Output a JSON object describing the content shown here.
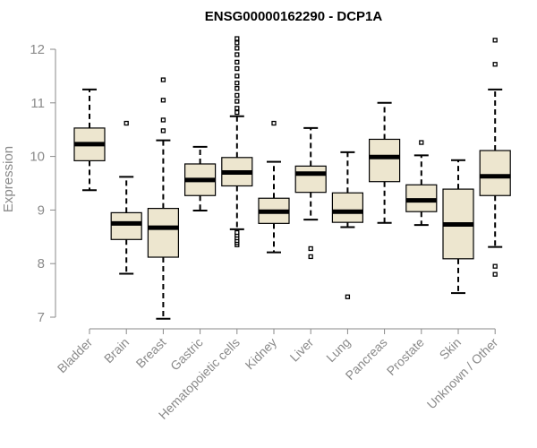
{
  "chart_data": {
    "type": "box",
    "title": "ENSG00000162290 - DCP1A",
    "xlabel": "",
    "ylabel": "Expression",
    "ylim": [
      7,
      12
    ],
    "yticks": [
      "7",
      "8",
      "9",
      "10",
      "11",
      "12"
    ],
    "box_fill": "#ede6cf",
    "categories": [
      "Bladder",
      "Brain",
      "Breast",
      "Gastric",
      "Hematopoietic cells",
      "Kidney",
      "Liver",
      "Lung",
      "Pancreas",
      "Prostate",
      "Skin",
      "Unknown / Other"
    ],
    "boxes": [
      {
        "category": "Bladder",
        "whisker_low": 9.37,
        "q1": 9.92,
        "median": 10.23,
        "q3": 10.53,
        "whisker_high": 11.25,
        "outliers": []
      },
      {
        "category": "Brain",
        "whisker_low": 7.81,
        "q1": 8.45,
        "median": 8.75,
        "q3": 8.95,
        "whisker_high": 9.62,
        "outliers": [
          10.62
        ]
      },
      {
        "category": "Breast",
        "whisker_low": 6.97,
        "q1": 8.12,
        "median": 8.67,
        "q3": 9.03,
        "whisker_high": 10.3,
        "outliers": [
          10.48,
          10.68,
          11.05,
          11.43
        ]
      },
      {
        "category": "Gastric",
        "whisker_low": 8.99,
        "q1": 9.27,
        "median": 9.56,
        "q3": 9.86,
        "whisker_high": 10.18,
        "outliers": []
      },
      {
        "category": "Hematopoietic cells",
        "whisker_low": 8.64,
        "q1": 9.45,
        "median": 9.7,
        "q3": 9.98,
        "whisker_high": 10.75,
        "outliers": [
          8.35,
          8.39,
          8.43,
          8.48,
          8.53,
          8.58,
          10.82,
          10.9,
          11.03,
          11.14,
          11.27,
          11.37,
          11.5,
          11.64,
          11.76,
          11.9,
          12.02,
          12.12,
          12.2
        ]
      },
      {
        "category": "Kidney",
        "whisker_low": 8.21,
        "q1": 8.75,
        "median": 8.97,
        "q3": 9.22,
        "whisker_high": 9.9,
        "outliers": [
          10.62
        ]
      },
      {
        "category": "Liver",
        "whisker_low": 8.82,
        "q1": 9.33,
        "median": 9.68,
        "q3": 9.82,
        "whisker_high": 10.53,
        "outliers": [
          8.13,
          8.28
        ]
      },
      {
        "category": "Lung",
        "whisker_low": 8.68,
        "q1": 8.77,
        "median": 8.97,
        "q3": 9.32,
        "whisker_high": 10.08,
        "outliers": [
          7.38
        ]
      },
      {
        "category": "Pancreas",
        "whisker_low": 8.76,
        "q1": 9.53,
        "median": 9.99,
        "q3": 10.32,
        "whisker_high": 11.0,
        "outliers": []
      },
      {
        "category": "Prostate",
        "whisker_low": 8.72,
        "q1": 8.97,
        "median": 9.18,
        "q3": 9.47,
        "whisker_high": 10.02,
        "outliers": [
          10.26
        ]
      },
      {
        "category": "Skin",
        "whisker_low": 7.45,
        "q1": 8.09,
        "median": 8.73,
        "q3": 9.39,
        "whisker_high": 9.93,
        "outliers": []
      },
      {
        "category": "Unknown / Other",
        "whisker_low": 8.31,
        "q1": 9.27,
        "median": 9.63,
        "q3": 10.11,
        "whisker_high": 11.25,
        "outliers": [
          7.8,
          7.95,
          11.72,
          12.17
        ]
      }
    ]
  }
}
